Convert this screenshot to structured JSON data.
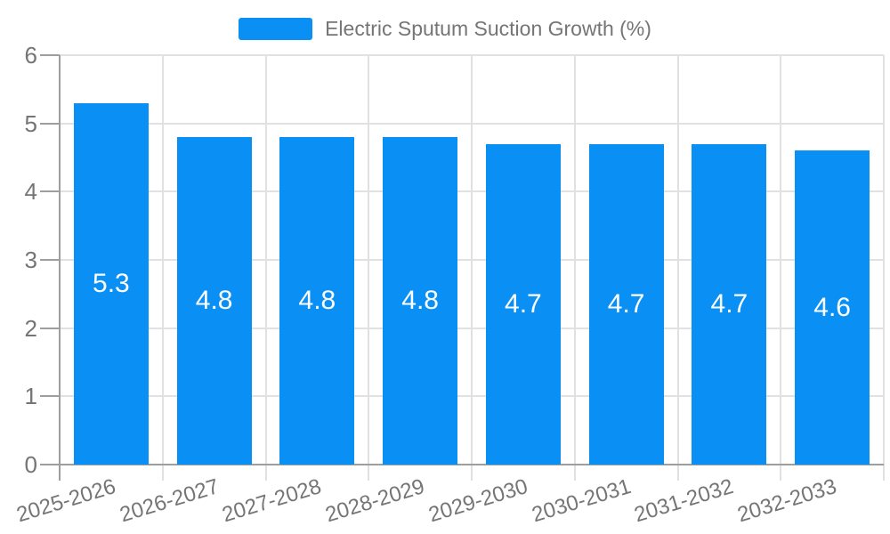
{
  "chart_data": {
    "type": "bar",
    "title": "Electric Sputum Suction Growth (%)",
    "legend_entries": [
      "Electric Sputum Suction Growth (%)"
    ],
    "legend_position": "top-center",
    "categories": [
      "2025-2026",
      "2026-2027",
      "2027-2028",
      "2028-2029",
      "2029-2030",
      "2030-2031",
      "2031-2032",
      "2032-2033"
    ],
    "series": [
      {
        "name": "Electric Sputum Suction Growth (%)",
        "values": [
          5.3,
          4.8,
          4.8,
          4.8,
          4.7,
          4.7,
          4.7,
          4.6
        ]
      }
    ],
    "values": [
      5.3,
      4.8,
      4.8,
      4.8,
      4.7,
      4.7,
      4.7,
      4.6
    ],
    "value_labels": [
      "5.3",
      "4.8",
      "4.8",
      "4.8",
      "4.7",
      "4.7",
      "4.7",
      "4.6"
    ],
    "xlabel": "",
    "ylabel": "",
    "ylim": [
      0,
      6
    ],
    "yticks": [
      "0",
      "1",
      "2",
      "3",
      "4",
      "5",
      "6"
    ],
    "grid": true,
    "colors": {
      "bar": "#0a90f4",
      "bar_value_text": "#ffffff",
      "axis": "#9e9e9e",
      "gridline": "#e1e1e1",
      "tick_text": "#757575",
      "legend_text": "#757575",
      "background": "#ffffff"
    }
  }
}
